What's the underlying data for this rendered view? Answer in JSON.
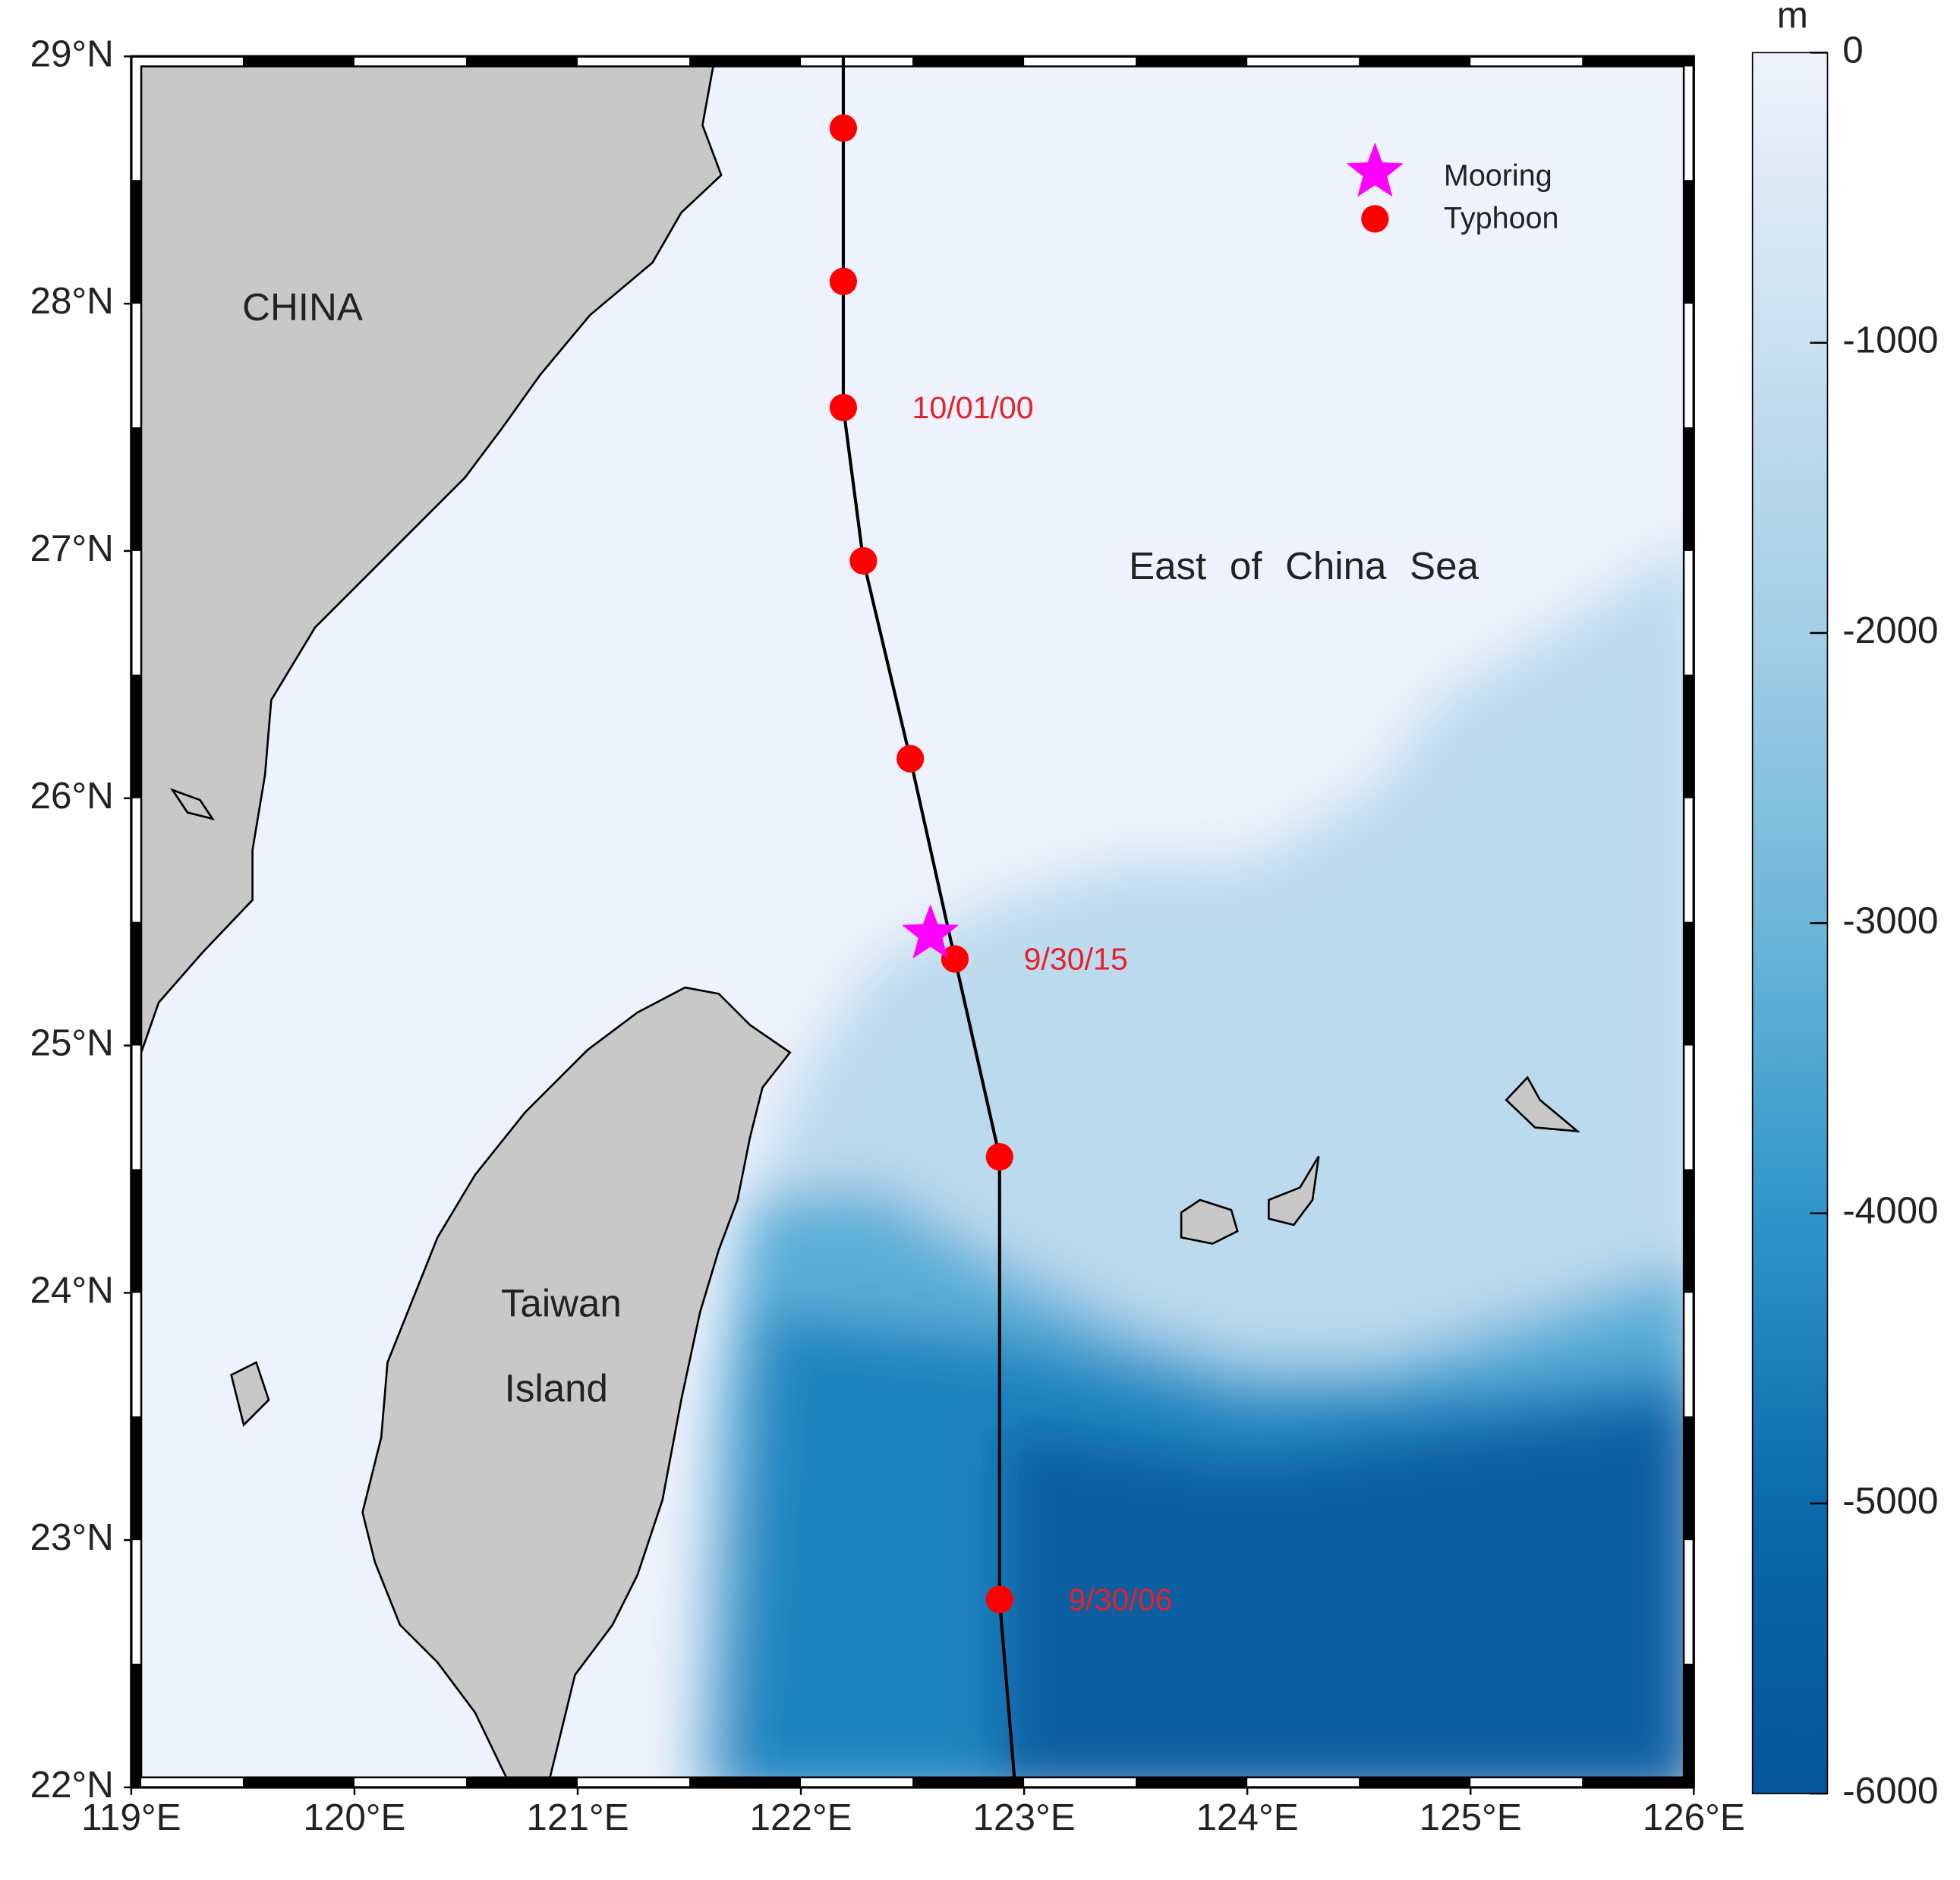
{
  "map": {
    "xlim": [
      119,
      126
    ],
    "ylim": [
      22,
      29
    ],
    "xticks": [
      {
        "value": 119,
        "label": "119°E"
      },
      {
        "value": 120,
        "label": "120°E"
      },
      {
        "value": 121,
        "label": "121°E"
      },
      {
        "value": 122,
        "label": "122°E"
      },
      {
        "value": 123,
        "label": "123°E"
      },
      {
        "value": 124,
        "label": "124°E"
      },
      {
        "value": 125,
        "label": "125°E"
      },
      {
        "value": 126,
        "label": "126°E"
      }
    ],
    "yticks": [
      {
        "value": 22,
        "label": "22°N"
      },
      {
        "value": 23,
        "label": "23°N"
      },
      {
        "value": 24,
        "label": "24°N"
      },
      {
        "value": 25,
        "label": "25°N"
      },
      {
        "value": 26,
        "label": "26°N"
      },
      {
        "value": 27,
        "label": "27°N"
      },
      {
        "value": 28,
        "label": "28°N"
      },
      {
        "value": 29,
        "label": "29°N"
      }
    ],
    "place_labels": [
      "CHINA",
      "East of China Sea",
      "Taiwan",
      "Island"
    ],
    "track": {
      "color": "#000000",
      "lon": [
        122.19,
        122.19,
        122.19,
        122.19,
        122.28,
        122.49,
        122.69,
        122.89,
        122.89,
        122.96
      ],
      "lat": [
        29,
        28.71,
        28.09,
        27.58,
        26.96,
        26.16,
        25.35,
        24.55,
        22.76,
        22
      ]
    },
    "typhoon": {
      "name": "Typhoon",
      "color": "#ff0000",
      "label_color": "#e8202a",
      "points": [
        {
          "lon": 122.19,
          "lat": 28.71
        },
        {
          "lon": 122.19,
          "lat": 28.09
        },
        {
          "lon": 122.19,
          "lat": 27.58,
          "label": "10/01/00"
        },
        {
          "lon": 122.28,
          "lat": 26.96
        },
        {
          "lon": 122.49,
          "lat": 26.16
        },
        {
          "lon": 122.69,
          "lat": 25.35,
          "label": "9/30/15"
        },
        {
          "lon": 122.89,
          "lat": 24.55
        },
        {
          "lon": 122.89,
          "lat": 22.76,
          "label": "9/30/06"
        }
      ]
    },
    "mooring": {
      "name": "Mooring",
      "color": "#ff00ff",
      "lon": 122.58,
      "lat": 25.45
    },
    "colorbar": {
      "unit": "m",
      "lim": [
        -6000,
        0
      ],
      "ticks": [
        0,
        -1000,
        -2000,
        -3000,
        -4000,
        -5000,
        -6000
      ],
      "colors": [
        "#eef2fc",
        "#c9e0f0",
        "#a3cee6",
        "#6db6da",
        "#2f96c9",
        "#0b6aab",
        "#04559a"
      ]
    }
  }
}
